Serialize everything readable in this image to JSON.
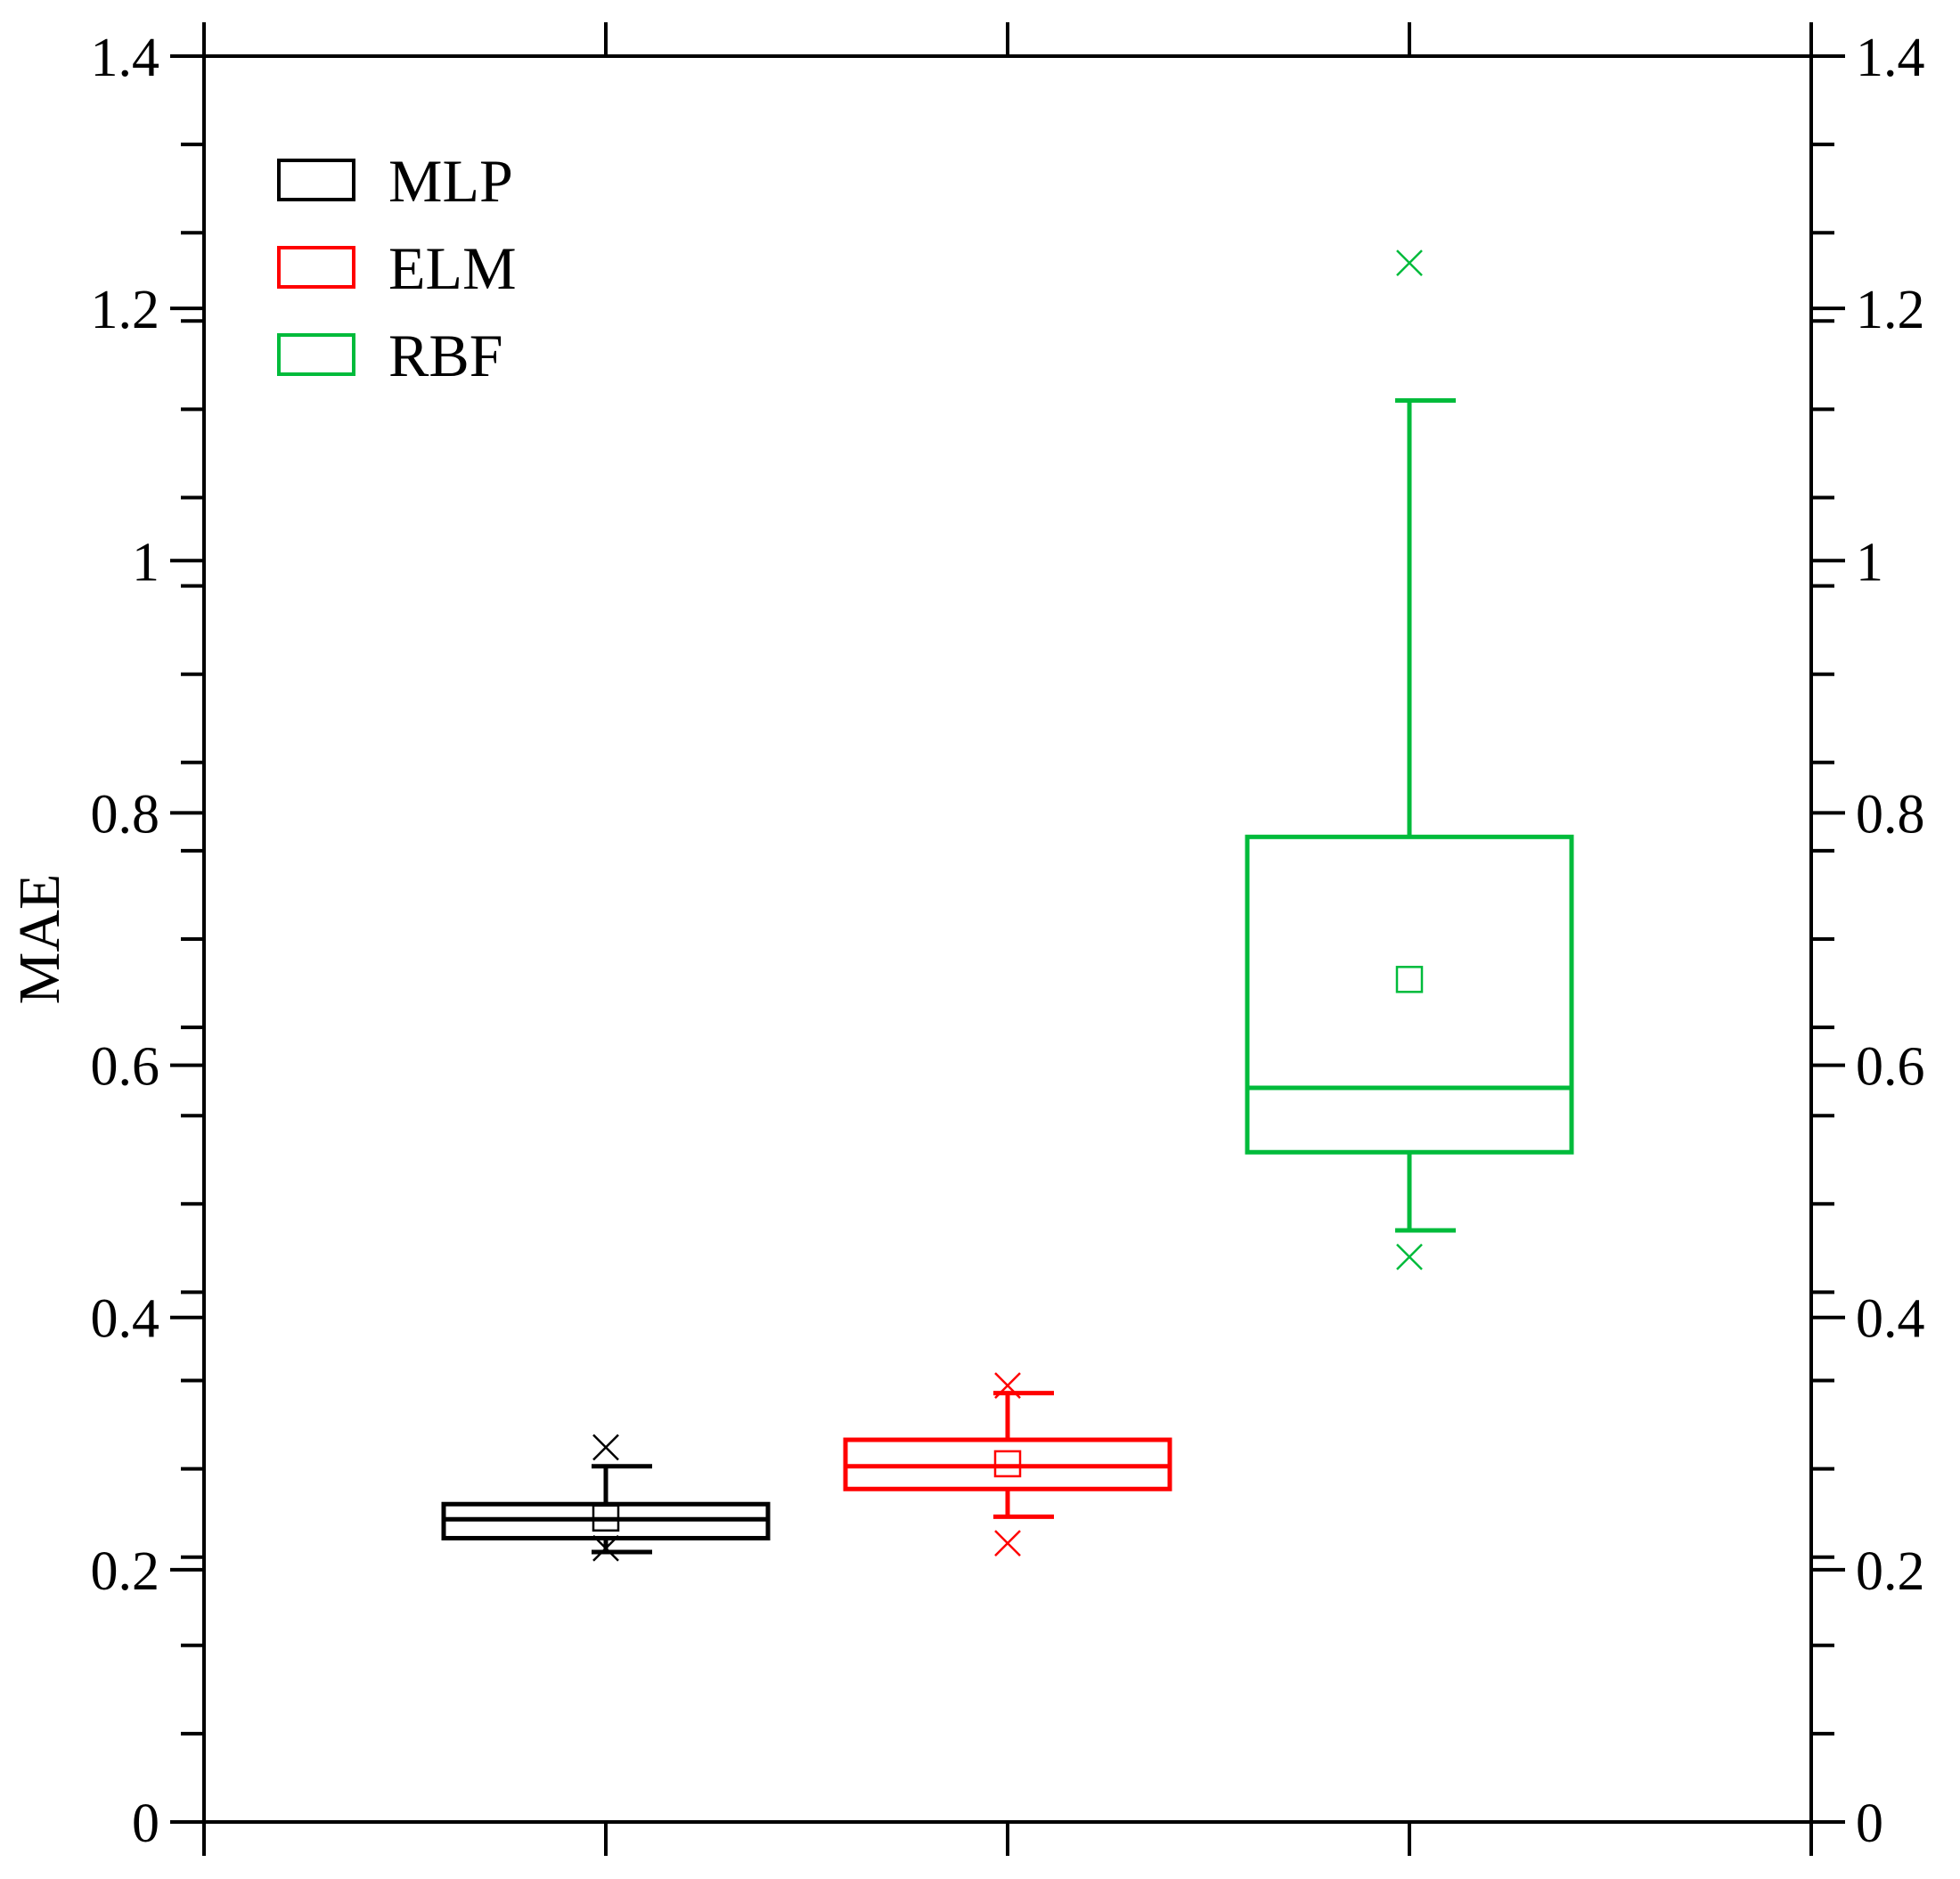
{
  "chart_data": {
    "type": "box",
    "ylabel": "MAE",
    "ylim": [
      0,
      1.4
    ],
    "y_ticks": [
      "0",
      "0.2",
      "0.4",
      "0.6",
      "0.8",
      "1",
      "1.2",
      "1.4"
    ],
    "y_tick_values": [
      0,
      0.2,
      0.4,
      0.6,
      0.8,
      1.0,
      1.2,
      1.4
    ],
    "right_axis_mirrored": true,
    "grid": false,
    "legend_position": "top-left",
    "series": [
      {
        "name": "MLP",
        "color": "#000000",
        "q1": 0.225,
        "median": 0.24,
        "q3": 0.252,
        "mean": 0.241,
        "whisker_low": 0.214,
        "whisker_high": 0.282,
        "outliers_low": [
          0.217
        ],
        "outliers_high": [
          0.297
        ]
      },
      {
        "name": "ELM",
        "color": "#ff0000",
        "q1": 0.264,
        "median": 0.282,
        "q3": 0.303,
        "mean": 0.284,
        "whisker_low": 0.242,
        "whisker_high": 0.34,
        "outliers_low": [
          0.221
        ],
        "outliers_high": [
          0.346
        ]
      },
      {
        "name": "RBF",
        "color": "#00bb3b",
        "q1": 0.531,
        "median": 0.582,
        "q3": 0.781,
        "mean": 0.668,
        "whisker_low": 0.469,
        "whisker_high": 1.127,
        "outliers_low": [
          0.448
        ],
        "outliers_high": [
          1.236
        ]
      }
    ]
  }
}
